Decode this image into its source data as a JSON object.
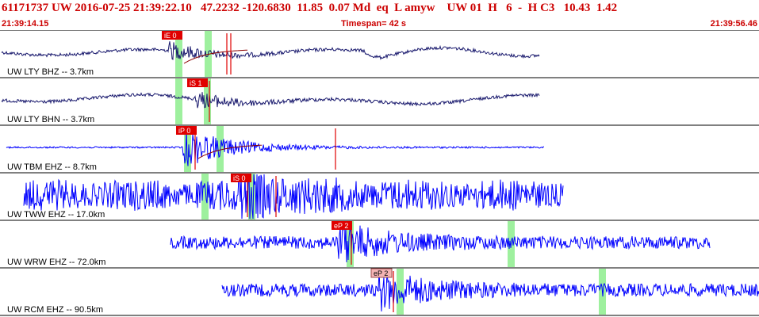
{
  "header": {
    "event_id": "61171737",
    "network": "UW",
    "datetime": "2016-07-25 21:39:22.10",
    "lat": "47.2232",
    "lon": "-120.6830",
    "depth": "11.85",
    "magnitude": "0.07",
    "mag_type": "Md",
    "event_type": "eq",
    "type_flag": "L",
    "analyst": "amyw",
    "origin_network": "UW",
    "version": "01",
    "quality": "H",
    "phase_count": "6",
    "dash": "-",
    "review_code": "H C3",
    "extra_a": "10.43",
    "extra_b": "1.42",
    "start_time": "21:39:14.15",
    "timespan_label": "Timespan=  42 s",
    "end_time": "21:39:56.46"
  },
  "colors": {
    "header_text": "#cc0000",
    "trace_dark": "#1a1a6e",
    "trace_blue": "#0000ff",
    "pick_red": "#e00000",
    "pick_faint": "#f4b4b4",
    "window_green": "#9ef09e",
    "decay_curve": "#8b0000",
    "separator": "#000000"
  },
  "channels": [
    {
      "label": "UW LTY BHZ -- 3.7km",
      "trace_color": "dark",
      "trace_start": 2,
      "trace_end": 680,
      "pick": {
        "label": "iE 0",
        "style": "solid",
        "t": 204
      },
      "green_windows": [
        221,
        258
      ],
      "red_marks": [
        286,
        291
      ],
      "decay": true
    },
    {
      "label": "UW LTY BHN -- 3.7km",
      "trace_color": "dark",
      "trace_start": 2,
      "trace_end": 680,
      "pick": {
        "label": "iS 1",
        "style": "solid",
        "t": 236
      },
      "green_windows": [
        221,
        257
      ],
      "red_marks": [
        264
      ],
      "decay": false
    },
    {
      "label": "UW TBM EHZ -- 8.7km",
      "trace_color": "blue",
      "trace_start": 8,
      "trace_end": 686,
      "pick": {
        "label": "iP 0",
        "style": "solid",
        "t": 222
      },
      "green_windows": [
        232,
        273
      ],
      "red_marks": [
        246,
        423
      ],
      "decay": true
    },
    {
      "label": "UW TWW EHZ -- 17.0km",
      "trace_color": "blue",
      "trace_start": 30,
      "trace_end": 710,
      "pick": {
        "label": "iS 0",
        "style": "solid",
        "t": 291
      },
      "green_windows": [
        254,
        313
      ],
      "red_marks": [
        312,
        348
      ],
      "decay": false
    },
    {
      "label": "UW WRW EHZ -- 72.0km",
      "trace_color": "blue",
      "trace_start": 215,
      "trace_end": 895,
      "pick": {
        "label": "eP 2",
        "style": "solid",
        "t": 418
      },
      "green_windows": [
        437,
        640
      ],
      "red_marks": [
        443
      ],
      "decay": false
    },
    {
      "label": "UW RCM EHZ -- 90.5km",
      "trace_color": "blue",
      "trace_start": 280,
      "trace_end": 957,
      "pick": {
        "label": "eP 2",
        "style": "faint",
        "t": 468
      },
      "green_windows": [
        500,
        755
      ],
      "red_marks": [
        496
      ],
      "decay": false
    }
  ]
}
